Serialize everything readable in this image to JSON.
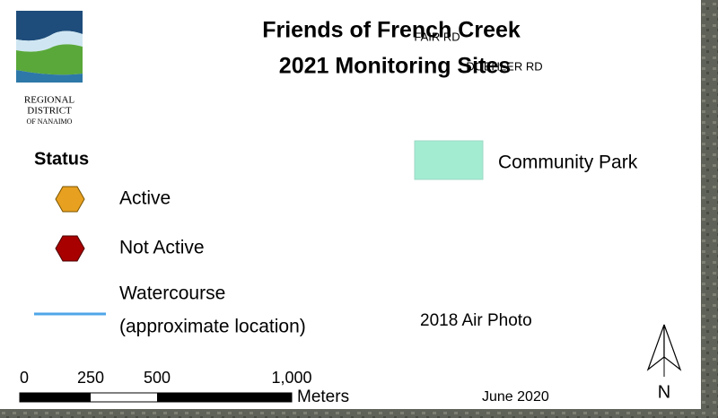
{
  "header": {
    "title_lines": [
      "Friends of French Creek",
      "2021 Monitoring Sites"
    ]
  },
  "road_labels": [
    "FAIR RD",
    "DOEHLER RD"
  ],
  "logo": {
    "lines": [
      "REGIONAL",
      "DISTRICT",
      "OF NANAIMO"
    ]
  },
  "legend": {
    "heading": "Status",
    "items": [
      {
        "label": "Active"
      },
      {
        "label": "Not Active"
      }
    ],
    "watercourse": {
      "lines": [
        "Watercourse",
        "(approximate location)"
      ]
    },
    "park": {
      "label": "Community Park"
    },
    "air_photo": "2018 Air Photo"
  },
  "scale_bar": {
    "labels": [
      "0",
      "250",
      "500",
      "1,000"
    ],
    "unit": "Meters"
  },
  "date": "June 2020",
  "north_label": "N"
}
